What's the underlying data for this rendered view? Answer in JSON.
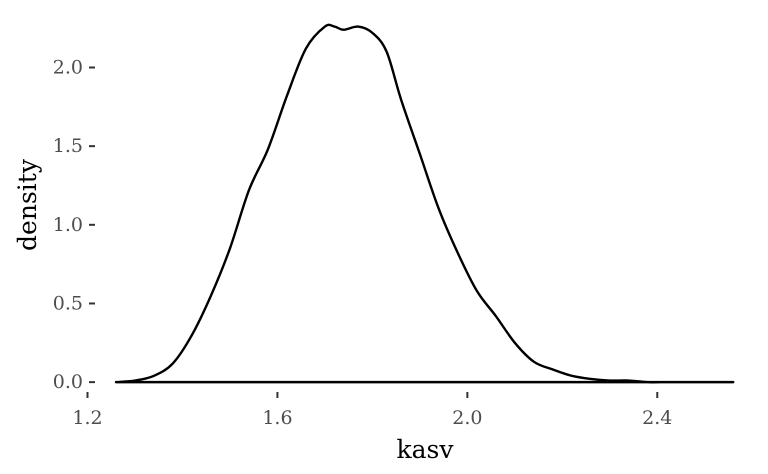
{
  "chart_data": {
    "type": "area",
    "title": "",
    "xlabel": "kasv",
    "ylabel": "density",
    "xlim": [
      1.22,
      2.57
    ],
    "ylim": [
      -0.05,
      2.34
    ],
    "x_ticks": [
      {
        "value": 1.2,
        "label": "1.2"
      },
      {
        "value": 1.6,
        "label": "1.6"
      },
      {
        "value": 2.0,
        "label": "2.0"
      },
      {
        "value": 2.4,
        "label": "2.4"
      }
    ],
    "y_ticks": [
      {
        "value": 0.0,
        "label": "0.0"
      },
      {
        "value": 0.5,
        "label": "0.5"
      },
      {
        "value": 1.0,
        "label": "1.0"
      },
      {
        "value": 1.5,
        "label": "1.5"
      },
      {
        "value": 2.0,
        "label": "2.0"
      }
    ],
    "grid": false,
    "line_color": "#000000",
    "series": [
      {
        "x": [
          1.26,
          1.3,
          1.34,
          1.38,
          1.42,
          1.46,
          1.5,
          1.54,
          1.58,
          1.62,
          1.66,
          1.7,
          1.72,
          1.74,
          1.77,
          1.8,
          1.83,
          1.86,
          1.9,
          1.94,
          1.98,
          2.02,
          2.06,
          2.1,
          2.14,
          2.18,
          2.22,
          2.26,
          2.3,
          2.34,
          2.38,
          2.42,
          2.46,
          2.5,
          2.56
        ],
        "y": [
          0.0,
          0.01,
          0.04,
          0.12,
          0.3,
          0.55,
          0.85,
          1.22,
          1.48,
          1.82,
          2.12,
          2.26,
          2.26,
          2.24,
          2.26,
          2.22,
          2.1,
          1.8,
          1.45,
          1.1,
          0.82,
          0.58,
          0.42,
          0.25,
          0.13,
          0.08,
          0.04,
          0.02,
          0.01,
          0.01,
          0.0,
          0.0,
          0.0,
          0.0,
          0.0
        ]
      }
    ]
  }
}
